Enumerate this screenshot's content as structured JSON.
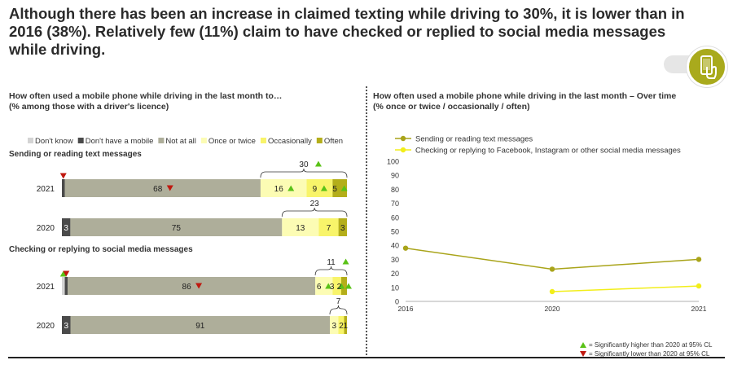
{
  "headline": "Although there has been an increase in claimed texting while driving to 30%, it is lower than in 2016 (38%). Relatively few (11%) claim to have checked or replied to social media messages while driving.",
  "left_panel": {
    "title_line1": "How often used a mobile phone while driving in the last month to…",
    "title_line2": "(% among those with a driver's licence)"
  },
  "right_panel": {
    "title_line1": "How often used a mobile phone while driving in the last month – Over time",
    "title_line2": "(% once or twice / occasionally / often)"
  },
  "notes": {
    "higher": "= Significantly higher than 2020 at 95% CL",
    "lower": "= Significantly lower than 2020 at 95% CL"
  },
  "colors": {
    "dont_know": "#d4d4d4",
    "no_mobile": "#4a4a4a",
    "not_at_all": "#aeae9a",
    "once_or_twice": "#fcfcb4",
    "occasionally": "#f8f46a",
    "often": "#b4ae1a",
    "line_text": "#a9a41a",
    "line_social": "#f2ee1a",
    "sig_up": "#5ac217",
    "sig_down": "#c0180f"
  },
  "chart_data": [
    {
      "type": "bar",
      "orientation": "horizontal",
      "stacked": true,
      "legend": [
        "Don't know",
        "Don't have a mobile",
        "Not at all",
        "Once or twice",
        "Occasionally",
        "Often"
      ],
      "groups": [
        {
          "title": "Sending or reading text messages",
          "rows": [
            {
              "label": "2021",
              "values": [
                0,
                1,
                68,
                16,
                9,
                5
              ],
              "labels": [
                "",
                "",
                "68",
                "16",
                "9",
                "5"
              ],
              "sig": [
                null,
                "down",
                "down",
                "up",
                "up",
                "up"
              ],
              "total_label": "30",
              "total_sig": "up"
            },
            {
              "label": "2020",
              "values": [
                0,
                3,
                75,
                13,
                7,
                3
              ],
              "labels": [
                "",
                "3",
                "75",
                "13",
                "7",
                "3"
              ],
              "sig": [
                null,
                null,
                null,
                null,
                null,
                null
              ],
              "total_label": "23",
              "total_sig": null
            }
          ]
        },
        {
          "title": "Checking or replying to  social media messages",
          "rows": [
            {
              "label": "2021",
              "values": [
                1,
                1,
                86,
                6,
                3,
                2
              ],
              "labels": [
                "",
                "",
                "86",
                "6",
                "3",
                "2"
              ],
              "sig": [
                "up",
                "down",
                "down",
                "up",
                "up",
                "up"
              ],
              "total_label": "11",
              "total_sig": "up"
            },
            {
              "label": "2020",
              "values": [
                0,
                3,
                91,
                3,
                2,
                1
              ],
              "labels": [
                "",
                "3",
                "91",
                "3",
                "2",
                "1"
              ],
              "sig": [
                null,
                null,
                null,
                null,
                null,
                null
              ],
              "total_label": "7",
              "total_sig": null
            }
          ]
        }
      ]
    },
    {
      "type": "line",
      "x": [
        "2016",
        "2020",
        "2021"
      ],
      "ylim": [
        0,
        100
      ],
      "yticks": [
        0,
        10,
        20,
        30,
        40,
        50,
        60,
        70,
        80,
        90,
        100
      ],
      "grid": false,
      "series": [
        {
          "name": "Sending or reading text messages",
          "values": [
            38,
            23,
            30
          ]
        },
        {
          "name": "Checking or replying to Facebook, Instagram or other social media messages",
          "values": [
            null,
            7,
            11
          ]
        }
      ]
    }
  ]
}
